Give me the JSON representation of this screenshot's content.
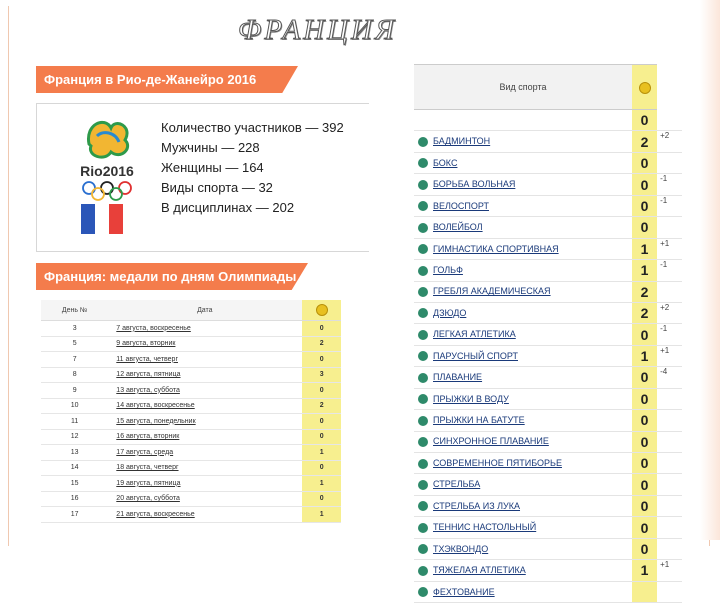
{
  "slide": {
    "title": "ФРАНЦИЯ"
  },
  "colors": {
    "accent": "#f47c4c",
    "medal_column": "#f7ef8f",
    "flag": [
      "#2b56b8",
      "#ffffff",
      "#e8403a"
    ]
  },
  "section1": {
    "heading": "Франция в Рио-де-Жанейро 2016",
    "logo_text": "Rio2016",
    "stats": [
      "Количество участников — 392",
      "Мужчины — 228",
      "Женщины — 164",
      "Виды спорта — 32",
      "В дисциплинах — 202"
    ]
  },
  "section2": {
    "heading": "Франция: медали по дням Олимпиады",
    "columns": {
      "day": "День №",
      "date": "Дата",
      "medal_icon": "gold-medal-icon"
    },
    "rows": [
      {
        "day": "3",
        "date": "7 августа, воскресенье",
        "medals": "0"
      },
      {
        "day": "5",
        "date": "9 августа, вторник",
        "medals": "2"
      },
      {
        "day": "7",
        "date": "11 августа, четверг",
        "medals": "0"
      },
      {
        "day": "8",
        "date": "12 августа, пятница",
        "medals": "3"
      },
      {
        "day": "9",
        "date": "13 августа, суббота",
        "medals": "0"
      },
      {
        "day": "10",
        "date": "14 августа, воскресенье",
        "medals": "2"
      },
      {
        "day": "11",
        "date": "15 августа, понедельник",
        "medals": "0"
      },
      {
        "day": "12",
        "date": "16 августа, вторник",
        "medals": "0"
      },
      {
        "day": "13",
        "date": "17 августа, среда",
        "medals": "1"
      },
      {
        "day": "14",
        "date": "18 августа, четверг",
        "medals": "0"
      },
      {
        "day": "15",
        "date": "19 августа, пятница",
        "medals": "1"
      },
      {
        "day": "16",
        "date": "20 августа, суббота",
        "medals": "0"
      },
      {
        "day": "17",
        "date": "21 августа, воскресенье",
        "medals": "1"
      }
    ]
  },
  "sports_table": {
    "columns": {
      "sport": "Вид спорта",
      "medal_icon": "gold-medal-icon"
    },
    "header_value": "0",
    "rows": [
      {
        "sport": "БАДМИНТОН",
        "medals": "2",
        "delta": "+2"
      },
      {
        "sport": "БОКС",
        "medals": "0",
        "delta": ""
      },
      {
        "sport": "БОРЬБА ВОЛЬНАЯ",
        "medals": "0",
        "delta": "-1"
      },
      {
        "sport": "ВЕЛОСПОРТ",
        "medals": "0",
        "delta": "-1"
      },
      {
        "sport": "ВОЛЕЙБОЛ",
        "medals": "0",
        "delta": ""
      },
      {
        "sport": "ГИМНАСТИКА СПОРТИВНАЯ",
        "medals": "1",
        "delta": "+1"
      },
      {
        "sport": "ГОЛЬФ",
        "medals": "1",
        "delta": "-1"
      },
      {
        "sport": "ГРЕБЛЯ АКАДЕМИЧЕСКАЯ",
        "medals": "2",
        "delta": ""
      },
      {
        "sport": "ДЗЮДО",
        "medals": "2",
        "delta": "+2"
      },
      {
        "sport": "ЛЕГКАЯ АТЛЕТИКА",
        "medals": "0",
        "delta": "-1"
      },
      {
        "sport": "ПАРУСНЫЙ СПОРТ",
        "medals": "1",
        "delta": "+1"
      },
      {
        "sport": "ПЛАВАНИЕ",
        "medals": "0",
        "delta": "-4"
      },
      {
        "sport": "ПРЫЖКИ В ВОДУ",
        "medals": "0",
        "delta": ""
      },
      {
        "sport": "ПРЫЖКИ НА БАТУТЕ",
        "medals": "0",
        "delta": ""
      },
      {
        "sport": "СИНХРОННОЕ ПЛАВАНИЕ",
        "medals": "0",
        "delta": ""
      },
      {
        "sport": "СОВРЕМЕННОЕ ПЯТИБОРЬЕ",
        "medals": "0",
        "delta": ""
      },
      {
        "sport": "СТРЕЛЬБА",
        "medals": "0",
        "delta": ""
      },
      {
        "sport": "СТРЕЛЬБА ИЗ ЛУКА",
        "medals": "0",
        "delta": ""
      },
      {
        "sport": "ТЕННИС НАСТОЛЬНЫЙ",
        "medals": "0",
        "delta": ""
      },
      {
        "sport": "ТХЭКВОНДО",
        "medals": "0",
        "delta": ""
      },
      {
        "sport": "ТЯЖЕЛАЯ АТЛЕТИКА",
        "medals": "1",
        "delta": "+1"
      },
      {
        "sport": "ФЕХТОВАНИЕ",
        "medals": "",
        "delta": ""
      }
    ]
  }
}
